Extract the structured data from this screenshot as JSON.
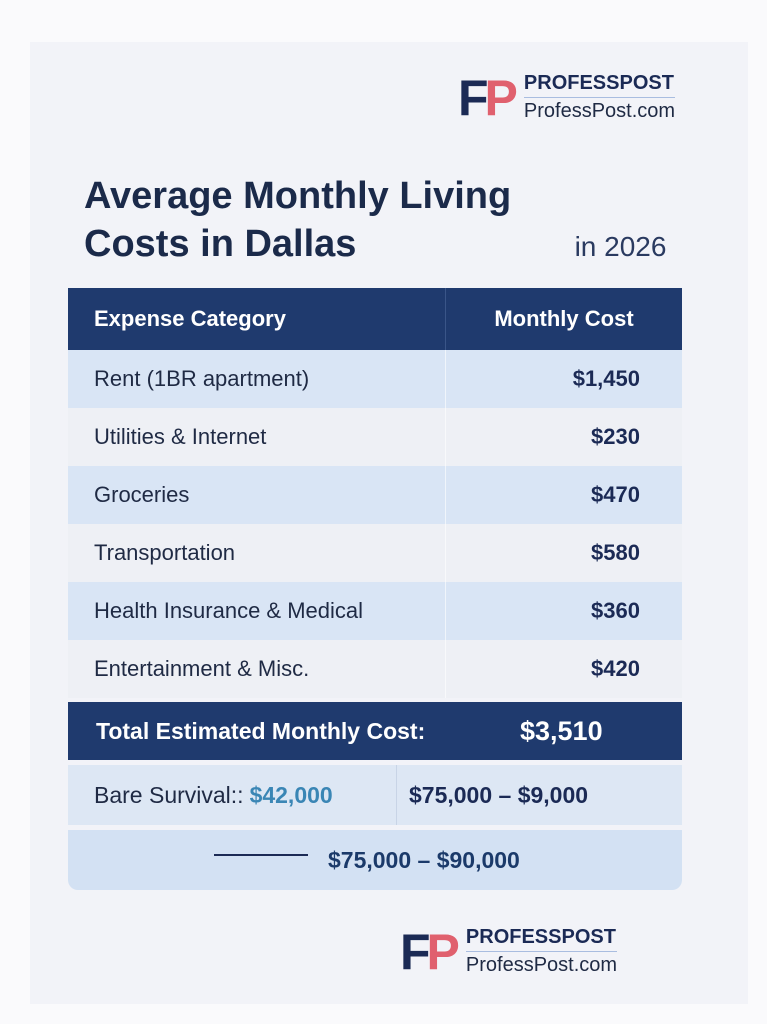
{
  "brand": {
    "logo_letters": "FP",
    "name": "PROFESSPOST",
    "site": "ProfessPost.com"
  },
  "title": {
    "main": "Average Monthly Living Costs in Dallas",
    "suffix": "in 2026"
  },
  "table": {
    "headers": [
      "Expense Category",
      "Monthly Cost"
    ],
    "rows": [
      {
        "category": "Rent (1BR apartment)",
        "cost": "$1,450"
      },
      {
        "category": "Utilities & Internet",
        "cost": "$230"
      },
      {
        "category": "Groceries",
        "cost": "$470"
      },
      {
        "category": "Transportation",
        "cost": "$580"
      },
      {
        "category": "Health Insurance & Medical",
        "cost": "$360"
      },
      {
        "category": "Entertainment & Misc.",
        "cost": "$420"
      }
    ],
    "total_label": "Total Estimated Monthly Cost:",
    "total_value": "$3,510"
  },
  "salary": {
    "survival_label": "Bare Survival::",
    "survival_value": "$42,000",
    "range1": "$75,000 – $9,000",
    "range2": "$75,000 – $90,000"
  },
  "colors": {
    "navy": "#1f3a6e",
    "accent_red": "#e0606e",
    "accent_blue": "#3a86b5"
  }
}
